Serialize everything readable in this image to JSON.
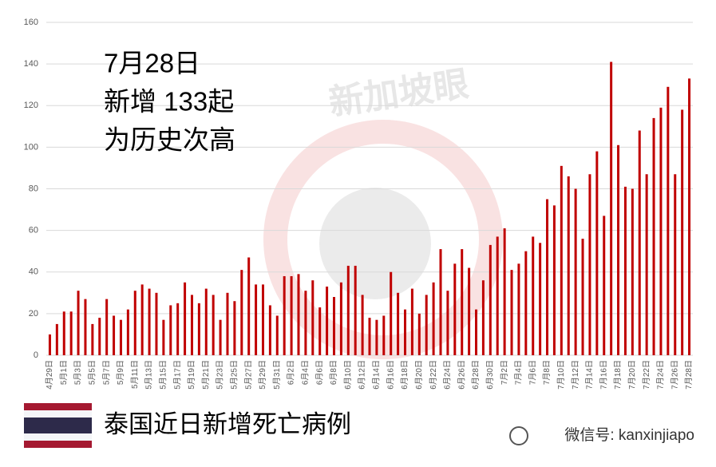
{
  "chart_data": {
    "type": "bar",
    "annotations": [
      "7月28日",
      "新增 133起",
      "为历史次高"
    ],
    "watermark": "新加坡眼",
    "caption": "泰国近日新增死亡病例",
    "source": "微信号: kanxinjiapo",
    "color": "#c00000",
    "categories": [
      "4月29日",
      null,
      "5月1日",
      null,
      "5月3日",
      null,
      "5月5日",
      null,
      "5月7日",
      null,
      "5月9日",
      null,
      "5月11日",
      null,
      "5月13日",
      null,
      "5月15日",
      null,
      "5月17日",
      null,
      "5月19日",
      null,
      "5月21日",
      null,
      "5月23日",
      null,
      "5月25日",
      null,
      "5月27日",
      null,
      "5月29日",
      null,
      "5月31日",
      null,
      "6月2日",
      null,
      "6月4日",
      null,
      "6月6日",
      null,
      "6月8日",
      null,
      "6月10日",
      null,
      "6月12日",
      null,
      "6月14日",
      null,
      "6月16日",
      null,
      "6月18日",
      null,
      "6月20日",
      null,
      "6月22日",
      null,
      "6月24日",
      null,
      "6月26日",
      null,
      "6月28日",
      null,
      "6月30日",
      null,
      "7月2日",
      null,
      "7月4日",
      null,
      "7月6日",
      null,
      "7月8日",
      null,
      "7月10日",
      null,
      "7月12日",
      null,
      "7月14日",
      null,
      "7月16日",
      null,
      "7月18日",
      null,
      "7月20日",
      null,
      "7月22日",
      null,
      "7月24日",
      null,
      "7月26日",
      null,
      "7月28日"
    ],
    "values": [
      10,
      15,
      21,
      21,
      31,
      27,
      15,
      18,
      27,
      19,
      17,
      22,
      31,
      34,
      32,
      30,
      17,
      24,
      25,
      35,
      29,
      25,
      32,
      29,
      17,
      30,
      26,
      41,
      47,
      34,
      34,
      24,
      19,
      38,
      38,
      39,
      31,
      36,
      23,
      33,
      28,
      35,
      43,
      43,
      29,
      18,
      17,
      19,
      40,
      30,
      22,
      32,
      20,
      29,
      35,
      51,
      31,
      44,
      51,
      42,
      22,
      36,
      53,
      57,
      61,
      41,
      44,
      50,
      57,
      54,
      75,
      72,
      91,
      86,
      80,
      56,
      87,
      98,
      67,
      141,
      101,
      81,
      80,
      108,
      87,
      114,
      119,
      129,
      87,
      118,
      133
    ],
    "ylim": [
      0,
      160
    ],
    "yticks": [
      0,
      20,
      40,
      60,
      80,
      100,
      120,
      140,
      160
    ],
    "grid": true
  }
}
